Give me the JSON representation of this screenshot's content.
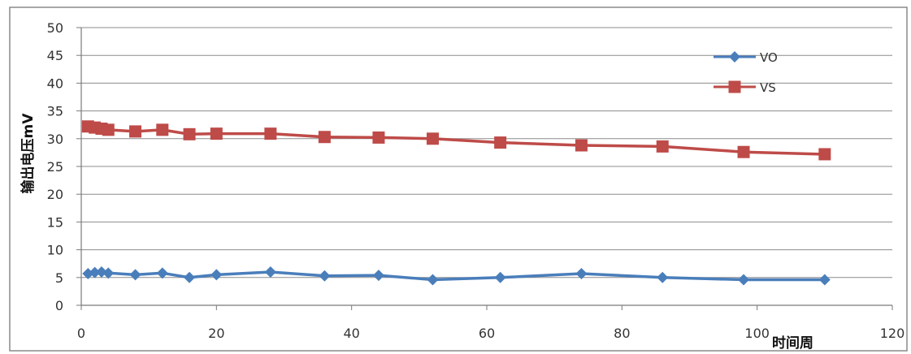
{
  "chart_data": {
    "type": "line",
    "title": "",
    "xlabel": "时间周",
    "ylabel": "输出电压mV",
    "xlim": [
      0,
      120
    ],
    "ylim": [
      0,
      50
    ],
    "x_ticks": [
      0,
      20,
      40,
      60,
      80,
      100,
      120
    ],
    "y_ticks": [
      0,
      5,
      10,
      15,
      20,
      25,
      30,
      35,
      40,
      45,
      50
    ],
    "grid": "horizontal",
    "legend_position": "top-right",
    "series": [
      {
        "name": "VO",
        "color": "#4a7ebb",
        "marker": "diamond",
        "x": [
          1,
          2,
          3,
          4,
          8,
          12,
          16,
          20,
          28,
          36,
          44,
          52,
          62,
          74,
          86,
          98,
          110
        ],
        "y": [
          5.7,
          5.9,
          6.0,
          5.8,
          5.5,
          5.8,
          5.0,
          5.5,
          6.0,
          5.3,
          5.4,
          4.6,
          5.0,
          5.7,
          5.0,
          4.6,
          4.6
        ]
      },
      {
        "name": "VS",
        "color": "#be4b48",
        "marker": "square",
        "x": [
          1,
          2,
          3,
          4,
          8,
          12,
          16,
          20,
          28,
          36,
          44,
          52,
          62,
          74,
          86,
          98,
          110
        ],
        "y": [
          32.2,
          32.0,
          31.8,
          31.6,
          31.3,
          31.6,
          30.8,
          30.9,
          30.9,
          30.3,
          30.2,
          30.0,
          29.3,
          28.8,
          28.6,
          27.6,
          27.2
        ]
      }
    ]
  }
}
